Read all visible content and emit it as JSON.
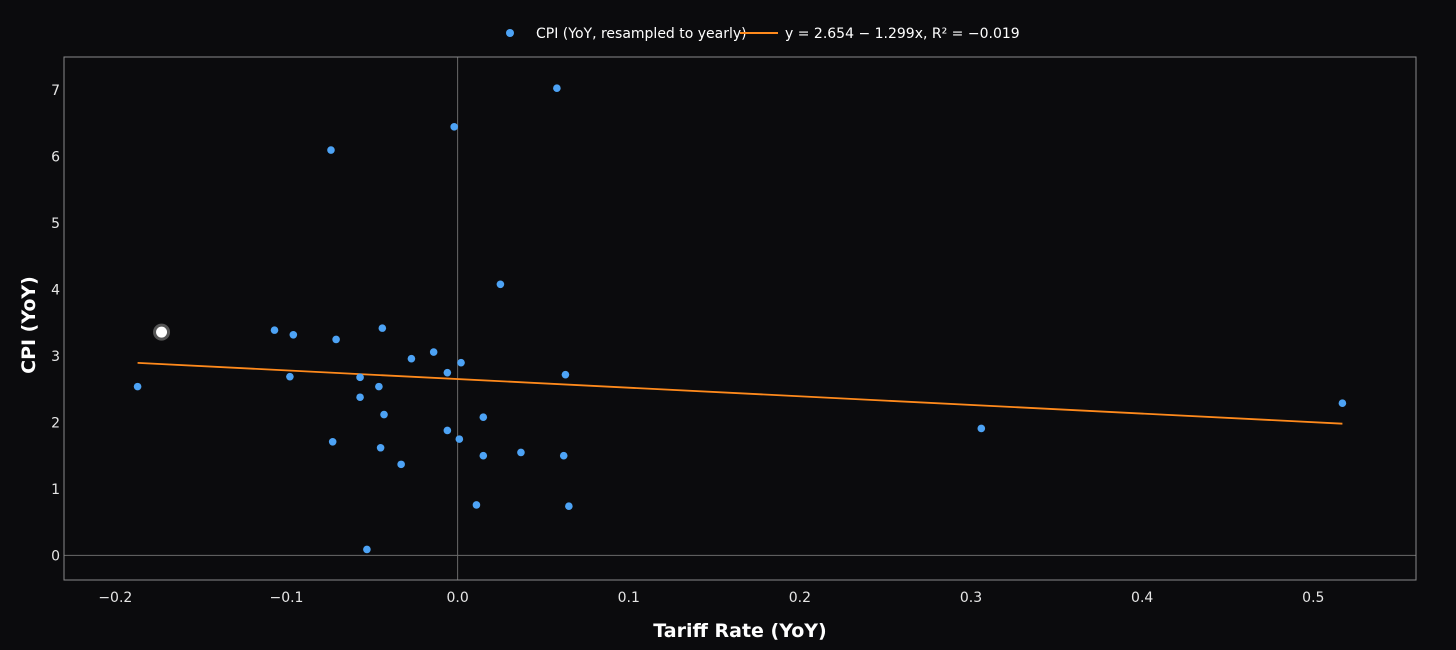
{
  "colors": {
    "background": "#0b0b0d",
    "scatter": "#4da3f5",
    "trend": "#ff8a1c",
    "frame": "#8a8a8a",
    "zero_line": "#6a6a6a",
    "highlight_fill": "#ffffff",
    "highlight_stroke": "#555555"
  },
  "chart_data": {
    "type": "scatter",
    "xlabel": "Tariff Rate (YoY)",
    "ylabel": "CPI (YoY)",
    "xlim": [
      -0.23,
      0.56
    ],
    "ylim": [
      -0.37,
      7.5
    ],
    "x_ticks": [
      -0.2,
      -0.1,
      0.0,
      0.1,
      0.2,
      0.3,
      0.4,
      0.5
    ],
    "x_tick_labels": [
      "−0.2",
      "−0.1",
      "0.0",
      "0.1",
      "0.2",
      "0.3",
      "0.4",
      "0.5"
    ],
    "y_ticks": [
      0,
      1,
      2,
      3,
      4,
      5,
      6,
      7
    ],
    "y_tick_labels": [
      "0",
      "1",
      "2",
      "3",
      "4",
      "5",
      "6",
      "7"
    ],
    "grid": false,
    "zero_lines": true,
    "legend_position": "top-center",
    "series": [
      {
        "name": "CPI (YoY, resampled to yearly)",
        "type": "scatter",
        "points": [
          [
            0.058,
            7.03
          ],
          [
            -0.002,
            6.45
          ],
          [
            -0.074,
            6.1
          ],
          [
            0.025,
            4.08
          ],
          [
            -0.107,
            3.39
          ],
          [
            -0.096,
            3.32
          ],
          [
            -0.044,
            3.42
          ],
          [
            -0.071,
            3.25
          ],
          [
            -0.014,
            3.06
          ],
          [
            -0.027,
            2.96
          ],
          [
            0.002,
            2.9
          ],
          [
            -0.006,
            2.75
          ],
          [
            0.063,
            2.72
          ],
          [
            -0.098,
            2.69
          ],
          [
            -0.057,
            2.68
          ],
          [
            -0.187,
            2.54
          ],
          [
            -0.046,
            2.54
          ],
          [
            -0.057,
            2.38
          ],
          [
            -0.043,
            2.12
          ],
          [
            0.015,
            2.08
          ],
          [
            0.517,
            2.29
          ],
          [
            0.306,
            1.91
          ],
          [
            -0.006,
            1.88
          ],
          [
            0.001,
            1.75
          ],
          [
            -0.073,
            1.71
          ],
          [
            -0.045,
            1.62
          ],
          [
            0.037,
            1.55
          ],
          [
            0.015,
            1.5
          ],
          [
            0.062,
            1.5
          ],
          [
            -0.033,
            1.37
          ],
          [
            0.011,
            0.76
          ],
          [
            0.065,
            0.74
          ],
          [
            -0.053,
            0.09
          ]
        ]
      },
      {
        "name": "y = 2.654 − 1.299x, R² = −0.019",
        "type": "line",
        "intercept": 2.654,
        "slope": -1.299,
        "x_range": [
          -0.187,
          0.517
        ]
      }
    ],
    "highlight_point": [
      -0.173,
      3.36
    ]
  }
}
